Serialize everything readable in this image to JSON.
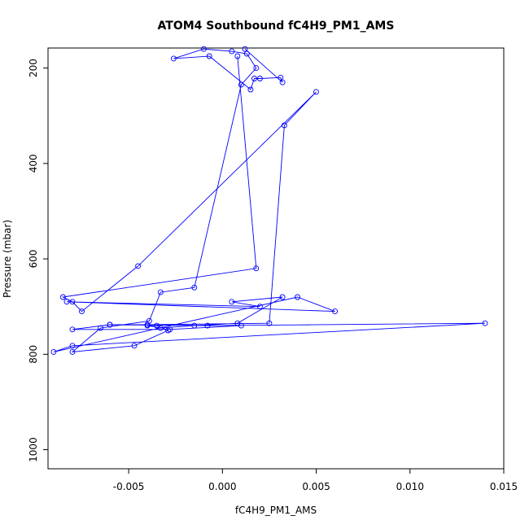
{
  "chart_data": {
    "type": "line",
    "title": "ATOM4 Southbound fC4H9_PM1_AMS",
    "xlabel": "fC4H9_PM1_AMS",
    "ylabel": "Pressure (mbar)",
    "xlim": [
      -0.0093,
      0.015
    ],
    "ylim": [
      1040,
      158
    ],
    "y_reversed": true,
    "x_ticks": [
      -0.005,
      0.0,
      0.005,
      0.01,
      0.015
    ],
    "x_tick_labels": [
      "-0.005",
      "0.000",
      "0.005",
      "0.010",
      "0.015"
    ],
    "y_ticks": [
      200,
      400,
      600,
      800,
      1000
    ],
    "y_tick_labels": [
      "200",
      "400",
      "600",
      "800",
      "1000"
    ],
    "grid": false,
    "legend": "none",
    "markers": "open-circle",
    "color": "#0000ff",
    "series": [
      {
        "x": [
          0.0012,
          0.0032,
          0.0031,
          0.002,
          0.0017,
          0.0015,
          -0.0007,
          -0.0026,
          -0.001,
          0.0005,
          0.0013,
          0.0018,
          0.001,
          -0.0015,
          -0.0033,
          -0.0039,
          -0.0065,
          -0.008,
          -0.0047,
          -0.0029,
          -0.0035,
          -0.004,
          -0.0033,
          -0.0015,
          0.0008,
          0.0032,
          0.0005,
          0.002,
          -0.0083,
          0.006,
          0.004,
          -0.009,
          -0.008,
          0.014,
          -0.0008,
          -0.006,
          -0.008,
          -0.0028,
          0.001,
          -0.006,
          -0.004,
          0.0025,
          0.0033,
          0.005,
          -0.0045,
          -0.0075,
          -0.008,
          -0.0085,
          0.0018,
          0.0008
        ],
        "y": [
          160,
          230,
          220,
          222,
          222,
          245,
          175,
          180,
          160,
          165,
          170,
          200,
          235,
          660,
          670,
          730,
          745,
          795,
          782,
          750,
          740,
          740,
          745,
          740,
          735,
          680,
          690,
          700,
          690,
          710,
          680,
          795,
          782,
          735,
          740,
          738,
          748,
          748,
          740,
          738,
          738,
          735,
          320,
          250,
          615,
          710,
          690,
          680,
          620,
          175
        ]
      }
    ]
  }
}
